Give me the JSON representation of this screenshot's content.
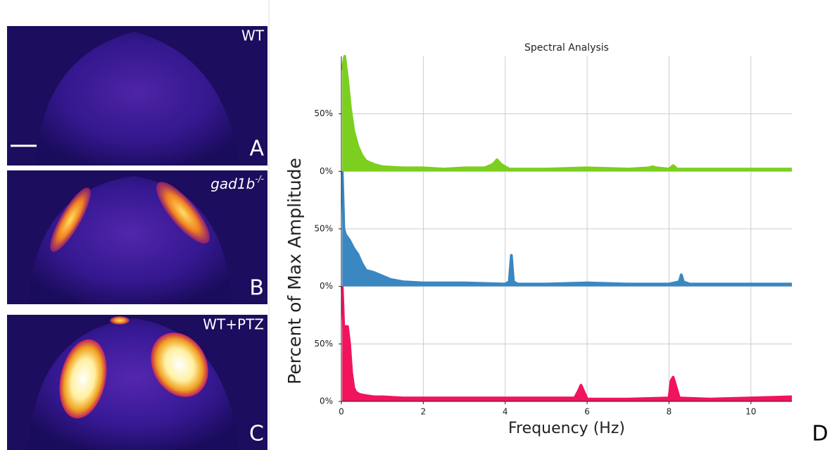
{
  "chart_data": {
    "type": "line",
    "title": "Spectral Analysis",
    "xlabel": "Frequency (Hz)",
    "ylabel": "Percent of Max Amplitude",
    "xlim": [
      0,
      11
    ],
    "xticks": [
      0,
      2,
      4,
      6,
      8,
      10
    ],
    "ylim": [
      0,
      100
    ],
    "yticks": [
      {
        "value": 0,
        "label": "0%"
      },
      {
        "value": 50,
        "label": "50%"
      }
    ],
    "grid": true,
    "series": [
      {
        "color": "#7ccf1e",
        "x": [
          0.02,
          0.08,
          0.15,
          0.22,
          0.3,
          0.4,
          0.5,
          0.6,
          0.8,
          1.0,
          1.5,
          2.0,
          2.5,
          3.0,
          3.5,
          3.7,
          3.8,
          3.9,
          4.1,
          5.0,
          6.0,
          7.0,
          7.5,
          7.6,
          7.7,
          8.0,
          8.1,
          8.2,
          9.0,
          10.0,
          11.0
        ],
        "values": [
          88,
          100,
          80,
          55,
          35,
          22,
          14,
          9,
          6,
          4,
          3,
          3,
          2,
          3,
          3,
          6,
          10,
          6,
          2,
          2,
          3,
          2,
          3,
          4,
          3,
          2,
          5,
          2,
          2,
          2,
          2
        ]
      },
      {
        "color": "#3a87c2",
        "x": [
          0.02,
          0.06,
          0.1,
          0.2,
          0.3,
          0.4,
          0.5,
          0.6,
          0.8,
          1.0,
          1.2,
          1.5,
          2.0,
          3.0,
          4.0,
          4.1,
          4.15,
          4.2,
          4.3,
          5.0,
          6.0,
          7.0,
          8.0,
          8.25,
          8.3,
          8.35,
          8.5,
          9.0,
          10.0,
          11.0
        ],
        "values": [
          100,
          50,
          45,
          40,
          33,
          28,
          20,
          14,
          12,
          9,
          6,
          4,
          3,
          3,
          2,
          4,
          27,
          4,
          2,
          2,
          3,
          2,
          2,
          4,
          10,
          4,
          2,
          2,
          2,
          2
        ]
      },
      {
        "color": "#f0145c",
        "x": [
          0.02,
          0.06,
          0.1,
          0.15,
          0.2,
          0.25,
          0.3,
          0.35,
          0.45,
          0.6,
          0.8,
          1.0,
          1.5,
          2.0,
          3.0,
          4.0,
          5.0,
          5.7,
          5.8,
          5.85,
          5.9,
          6.0,
          7.0,
          8.0,
          8.05,
          8.1,
          8.15,
          8.25,
          9.0,
          10.0,
          11.0
        ],
        "values": [
          100,
          60,
          65,
          65,
          50,
          25,
          12,
          8,
          6,
          5,
          4,
          4,
          3,
          3,
          3,
          3,
          3,
          3,
          10,
          14,
          10,
          2,
          2,
          3,
          18,
          21,
          15,
          3,
          2,
          3,
          4
        ]
      }
    ]
  },
  "panels": [
    {
      "label": "WT",
      "letter": "A"
    },
    {
      "label": "gad1b",
      "superscript": "-/-",
      "letter": "B"
    },
    {
      "label": "WT+PTZ",
      "letter": "C"
    }
  ],
  "figure_letter": "D"
}
